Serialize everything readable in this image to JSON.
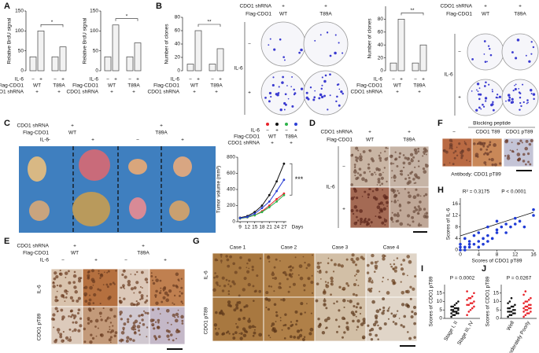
{
  "panel_labels": [
    "A",
    "B",
    "C",
    "D",
    "E",
    "F",
    "G",
    "H",
    "I",
    "J"
  ],
  "images": {
    "B_left": {
      "rows": [
        {
          "label": "CDO1 shRNA",
          "cells": [
            "+",
            "+"
          ]
        },
        {
          "label": "Flag-CDO1",
          "cells": [
            "WT",
            "T89A"
          ]
        }
      ],
      "side_title": "IL-6",
      "row_labels": [
        "−",
        "+"
      ]
    },
    "B_right": {
      "rows": [
        {
          "label": "CDO1 shRNA",
          "cells": [
            "+",
            "+"
          ]
        },
        {
          "label": "Flag-CDO1",
          "cells": [
            "WT",
            "T89A"
          ]
        }
      ],
      "side_title": "IL-6",
      "row_labels": [
        "−",
        "+"
      ]
    },
    "C": {
      "rows": [
        {
          "label": "CDO1 shRNA",
          "cells": [
            "+",
            "+"
          ]
        },
        {
          "label": "Flag-CDO1",
          "cells": [
            "WT",
            "T89A"
          ]
        },
        {
          "label": "IL-6",
          "cells": [
            "−",
            "+",
            "−",
            "+"
          ]
        }
      ]
    },
    "D": {
      "rows": [
        {
          "label": "CDO1 shRNA",
          "cells": [
            "+",
            "+"
          ]
        },
        {
          "label": "Flag-CDO1",
          "cells": [
            "WT",
            "T89A"
          ]
        }
      ],
      "side_title": "IL-6",
      "row_labels": [
        "−",
        "+"
      ]
    },
    "E": {
      "rows": [
        {
          "label": "CDO1 shRNA",
          "cells": [
            "+",
            "+"
          ]
        },
        {
          "label": "Flag-CDO1",
          "cells": [
            "WT",
            "T89A"
          ]
        },
        {
          "label": "IL-6",
          "cells": [
            "−",
            "+",
            "−",
            "+"
          ]
        }
      ],
      "row_labels": [
        "IL-6",
        "CDO1 pT89"
      ]
    },
    "F": {
      "top": "Blocking peptide",
      "col_labels": [
        "−",
        "CDO1 T89",
        "CDO1 pT89"
      ],
      "bottom": "Antibody: CDO1 pT89"
    },
    "G": {
      "col_labels": [
        "Case 1",
        "Case 2",
        "Case 3",
        "Case 4"
      ],
      "row_labels": [
        "IL-6",
        "CDO1 pT89"
      ]
    }
  },
  "chart_data": [
    {
      "type": "bar",
      "y_label": "Relative BrdU signal",
      "ylim": [
        0,
        150
      ],
      "yticks": [
        0,
        50,
        100,
        150
      ],
      "values": [
        35,
        100,
        35,
        60
      ],
      "color": "#f2f2f2",
      "significance": "*",
      "conditions": [
        {
          "label": "IL-6",
          "cells": [
            "−",
            "+",
            "−",
            "+"
          ]
        },
        {
          "label": "Flag-CDO1",
          "cells": [
            "WT",
            "T89A"
          ]
        },
        {
          "label": "CDO1 shRNA",
          "cells": [
            "+",
            "+"
          ]
        }
      ]
    },
    {
      "type": "bar",
      "y_label": "Relative BrdU signal",
      "ylim": [
        0,
        150
      ],
      "yticks": [
        0,
        50,
        100,
        150
      ],
      "values": [
        35,
        115,
        35,
        70
      ],
      "color": "#f2f2f2",
      "significance": "*",
      "conditions": [
        {
          "label": "IL-6",
          "cells": [
            "−",
            "+",
            "−",
            "+"
          ]
        },
        {
          "label": "Flag-CDO1",
          "cells": [
            "WT",
            "T89A"
          ]
        },
        {
          "label": "CDO1 shRNA",
          "cells": [
            "+",
            "+"
          ]
        }
      ]
    },
    {
      "type": "bar",
      "y_label": "Number of clones",
      "ylim": [
        0,
        80
      ],
      "yticks": [
        0,
        20,
        40,
        60,
        80
      ],
      "values": [
        10,
        60,
        10,
        33
      ],
      "color": "#f2f2f2",
      "significance": "**",
      "conditions": [
        {
          "label": "IL-6",
          "cells": [
            "−",
            "+",
            "−",
            "+"
          ]
        },
        {
          "label": "Flag-CDO1",
          "cells": [
            "WT",
            "T89A"
          ]
        },
        {
          "label": "CDO1 shRNA",
          "cells": [
            "+",
            "+"
          ]
        }
      ]
    },
    {
      "type": "bar",
      "y_label": "Number of clones",
      "ylim": [
        0,
        100
      ],
      "yticks": [
        0,
        20,
        40,
        60,
        80
      ],
      "values": [
        12,
        80,
        12,
        40
      ],
      "color": "#f2f2f2",
      "significance": "**",
      "conditions": [
        {
          "label": "IL-6",
          "cells": [
            "−",
            "+",
            "−",
            "+"
          ]
        },
        {
          "label": "Flag-CDO1",
          "cells": [
            "WT",
            "T89A"
          ]
        },
        {
          "label": "CDO1 shRNA",
          "cells": [
            "+",
            "+"
          ]
        }
      ]
    },
    {
      "type": "line",
      "y_label": "Tumor volume (mm³)",
      "x_label": "Days",
      "x": [
        9,
        12,
        15,
        18,
        21,
        24,
        27
      ],
      "xlim": [
        8,
        28
      ],
      "xticks": [
        9,
        12,
        15,
        18,
        21,
        24,
        27
      ],
      "ylim": [
        0,
        800
      ],
      "yticks": [
        0,
        200,
        400,
        600,
        800
      ],
      "significance": "***",
      "series": [
        {
          "color": "#e8232a",
          "values": [
            40,
            55,
            80,
            130,
            200,
            280,
            350
          ]
        },
        {
          "color": "#111111",
          "values": [
            50,
            70,
            120,
            200,
            330,
            500,
            720
          ]
        },
        {
          "color": "#2db34a",
          "values": [
            40,
            55,
            80,
            120,
            180,
            250,
            330
          ]
        },
        {
          "color": "#2b3fd6",
          "values": [
            45,
            60,
            100,
            170,
            250,
            380,
            520
          ]
        }
      ],
      "conditions": [
        {
          "label": "IL-6",
          "cells": [
            "−",
            "+",
            "−",
            "+"
          ]
        },
        {
          "label": "Flag-CDO1",
          "cells": [
            "WT",
            "T89A"
          ]
        },
        {
          "label": "CDO1 shRNA",
          "cells": [
            "+",
            "+"
          ]
        }
      ]
    },
    {
      "type": "scatter",
      "annotations": [
        "R² = 0.3175",
        "P < 0.0001"
      ],
      "x_label": "Scores of CDO1 pT89",
      "y_label": "Scores of IL-6",
      "color": "#1f3bd6",
      "xlim": [
        0,
        16
      ],
      "xticks": [
        0,
        4,
        8,
        12,
        16
      ],
      "ylim": [
        0,
        18
      ],
      "yticks": [
        0,
        4,
        8,
        12,
        16
      ],
      "x": [
        0,
        0,
        0,
        1,
        1,
        1,
        2,
        2,
        2,
        3,
        3,
        4,
        4,
        4,
        5,
        5,
        6,
        6,
        6,
        7,
        8,
        8,
        8,
        9,
        10,
        10,
        11,
        12,
        12,
        13,
        14,
        16,
        16
      ],
      "y": [
        0,
        1,
        2,
        0,
        1,
        4,
        1,
        2,
        3,
        2,
        5,
        1,
        3,
        6,
        2,
        4,
        3,
        5,
        8,
        4,
        6,
        7,
        10,
        8,
        6,
        9,
        8,
        9,
        11,
        10,
        8,
        12,
        14
      ]
    },
    {
      "type": "strip",
      "annotation": "P = 0.0002",
      "y_label": "Scores of CDO1 pT89",
      "ylim": [
        0,
        20
      ],
      "yticks": [
        0,
        5,
        10,
        15
      ],
      "categories": [
        "Stage I, II",
        "Stage III, IV"
      ],
      "colors": [
        "#111111",
        "#e8232a"
      ],
      "values": [
        [
          1,
          2,
          2,
          3,
          3,
          3,
          4,
          4,
          4,
          5,
          5,
          5,
          6,
          6,
          6,
          7,
          7,
          8,
          9,
          10
        ],
        [
          2,
          4,
          5,
          6,
          7,
          8,
          8,
          9,
          9,
          10,
          11,
          12,
          12,
          13,
          15,
          16
        ]
      ]
    },
    {
      "type": "strip",
      "annotation": "P = 0.0267",
      "y_label": "Scores of CDO1 pT89",
      "ylim": [
        0,
        20
      ],
      "yticks": [
        0,
        5,
        10,
        15
      ],
      "categories": [
        "Well",
        "Moderately Poorly"
      ],
      "colors": [
        "#111111",
        "#e8232a"
      ],
      "values": [
        [
          1,
          2,
          2,
          3,
          3,
          4,
          4,
          4,
          5,
          5,
          6,
          6,
          7,
          7,
          8,
          9,
          10,
          12
        ],
        [
          1,
          2,
          3,
          3,
          4,
          4,
          5,
          5,
          6,
          6,
          6,
          7,
          7,
          8,
          8,
          9,
          10,
          10,
          11,
          12,
          14,
          16
        ]
      ]
    }
  ]
}
